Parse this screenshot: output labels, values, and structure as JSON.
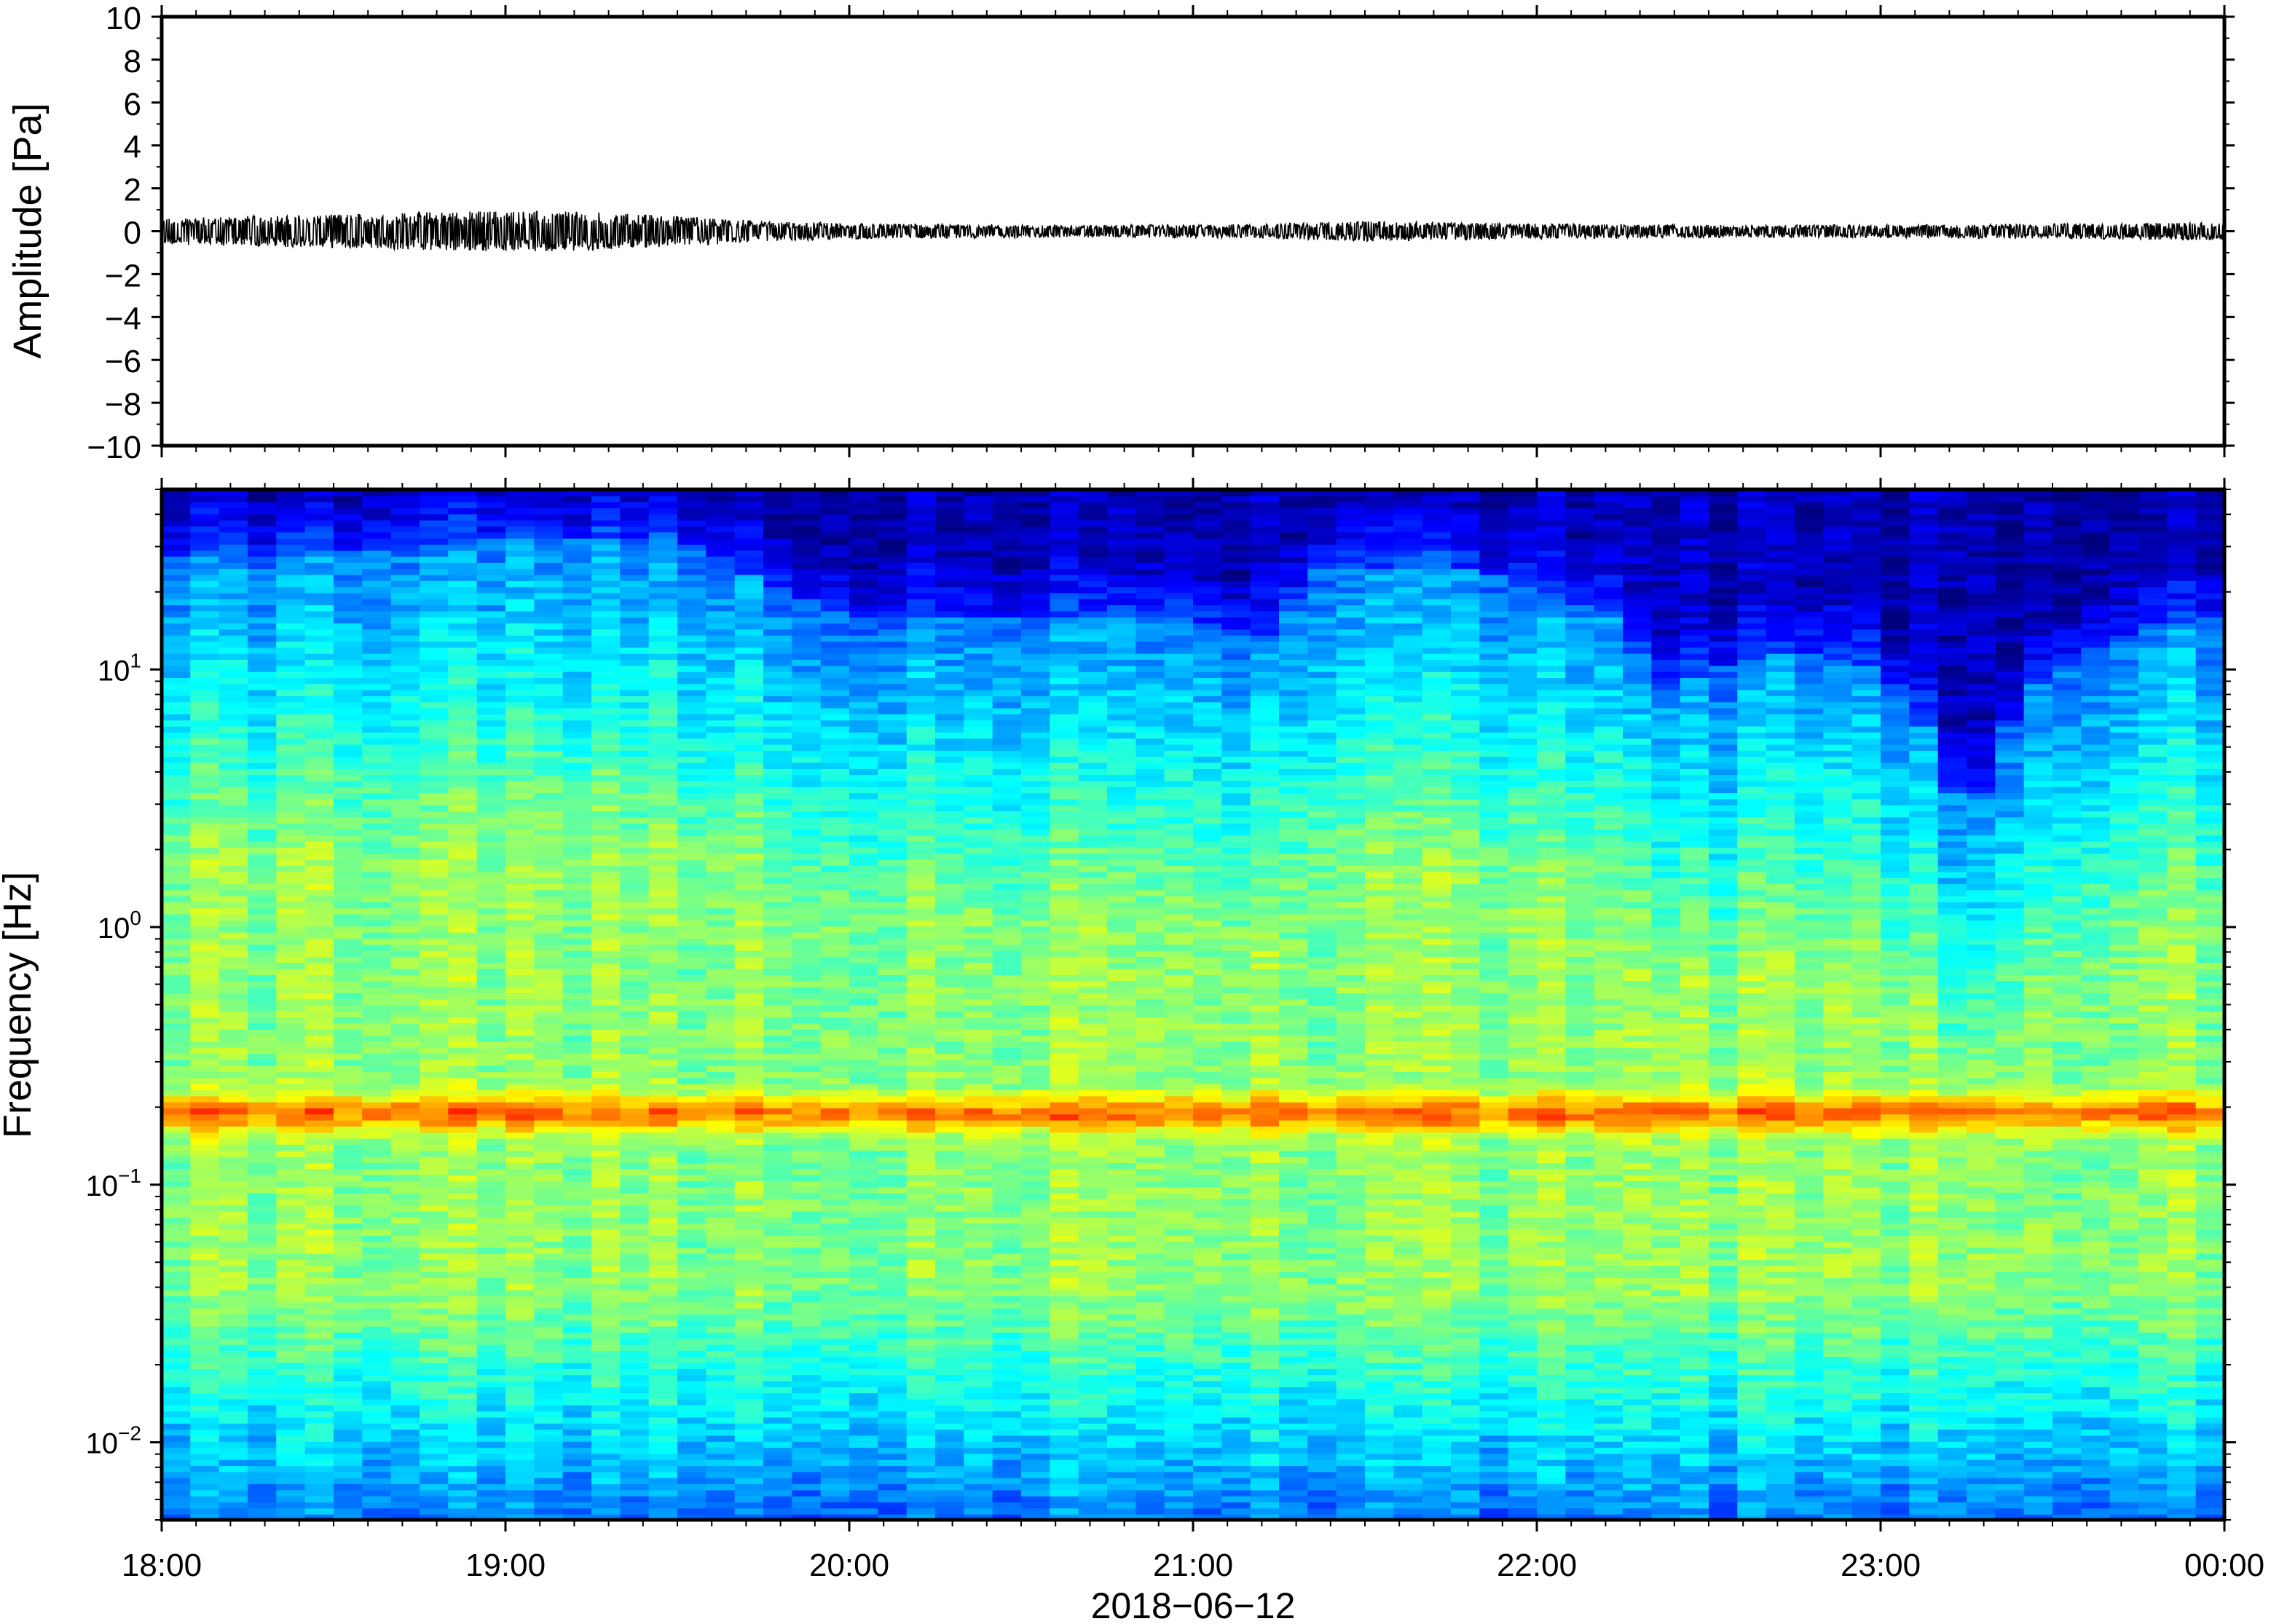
{
  "chart_data": [
    {
      "type": "line",
      "ylabel": "Amplitude [Pa]",
      "ylim": [
        -10,
        10
      ],
      "yticks": [
        "10",
        "8",
        "6",
        "4",
        "2",
        "0",
        "−2",
        "−4",
        "−6",
        "−8",
        "−10"
      ],
      "xlim": [
        "18:00",
        "00:00"
      ],
      "grid": false,
      "series": [
        {
          "color": "#000000",
          "envelope_pa": [
            [
              0,
              0.5
            ],
            [
              0.25,
              0.6
            ],
            [
              0.5,
              0.65
            ],
            [
              0.75,
              0.75
            ],
            [
              1.0,
              0.8
            ],
            [
              1.25,
              0.75
            ],
            [
              1.5,
              0.6
            ],
            [
              1.75,
              0.4
            ],
            [
              2.0,
              0.3
            ],
            [
              2.5,
              0.25
            ],
            [
              3.0,
              0.25
            ],
            [
              3.25,
              0.3
            ],
            [
              3.5,
              0.4
            ],
            [
              3.75,
              0.35
            ],
            [
              4.0,
              0.3
            ],
            [
              4.5,
              0.25
            ],
            [
              5.0,
              0.25
            ],
            [
              5.5,
              0.3
            ],
            [
              6.0,
              0.35
            ]
          ]
        }
      ]
    },
    {
      "type": "heatmap",
      "ylabel": "Frequency [Hz]",
      "xlabel": "2018−06−12",
      "yscale": "log",
      "ylim_hz": [
        0.005,
        50
      ],
      "yticks": [
        {
          "base": "10",
          "exp": "1"
        },
        {
          "base": "10",
          "exp": "0"
        },
        {
          "base": "10",
          "exp": "−1"
        },
        {
          "base": "10",
          "exp": "−2"
        }
      ],
      "xticks": [
        "18:00",
        "19:00",
        "20:00",
        "21:00",
        "22:00",
        "23:00",
        "00:00"
      ],
      "colormap": [
        "#00007f",
        "#0000ff",
        "#0080ff",
        "#00ffff",
        "#80ff80",
        "#ffff00",
        "#ff8000",
        "#ff0000"
      ],
      "dominant_band_hz": 0.19,
      "high_frequency_cutoff_hz": [
        [
          0,
          28
        ],
        [
          0.5,
          28
        ],
        [
          1.0,
          32
        ],
        [
          1.5,
          32
        ],
        [
          1.75,
          22
        ],
        [
          2.0,
          16
        ],
        [
          2.5,
          16
        ],
        [
          3.0,
          16
        ],
        [
          3.25,
          12
        ],
        [
          3.33,
          26
        ],
        [
          3.5,
          24
        ],
        [
          3.75,
          26
        ],
        [
          4.0,
          20
        ],
        [
          4.25,
          16
        ],
        [
          4.33,
          8
        ],
        [
          4.5,
          10
        ],
        [
          4.75,
          12
        ],
        [
          5.0,
          10
        ],
        [
          5.25,
          2
        ],
        [
          5.5,
          10
        ],
        [
          5.75,
          14
        ],
        [
          6.0,
          16
        ]
      ]
    }
  ]
}
